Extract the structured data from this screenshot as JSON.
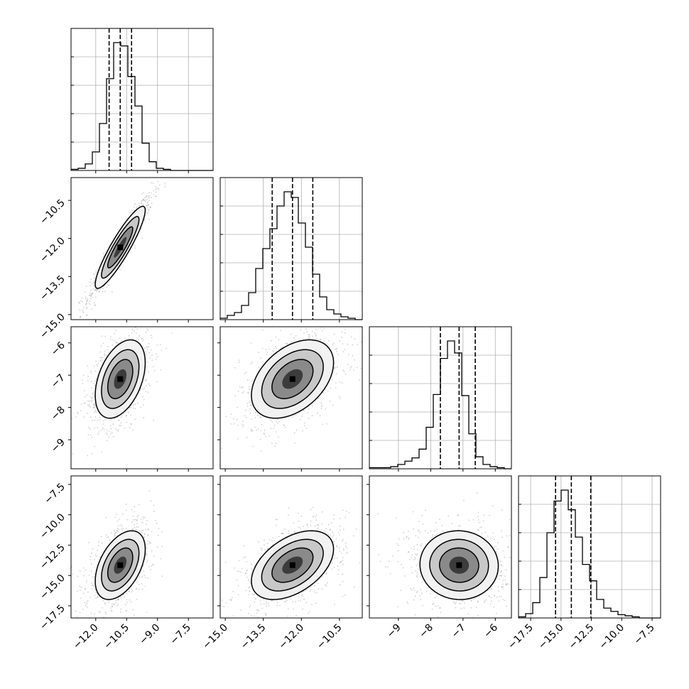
{
  "chart_data": {
    "type": "corner",
    "parameters": 4,
    "colors": {
      "line": "#000000",
      "grid": "#b0b0b0",
      "points": "#7f7f7f"
    },
    "grid": true,
    "axis_ranges": [
      [
        -13.2,
        -6.3
      ],
      [
        -15.2,
        -9.6
      ],
      [
        -9.9,
        -5.5
      ],
      [
        -18.5,
        -6.8
      ]
    ],
    "ticks": [
      {
        "values": [
          -12.0,
          -10.5,
          -9.0,
          -7.5
        ],
        "labels": [
          "−12.0",
          "−10.5",
          "−9.0",
          "−7.5"
        ]
      },
      {
        "values": [
          -15.0,
          -13.5,
          -12.0,
          -10.5
        ],
        "labels": [
          "−15.0",
          "−13.5",
          "−12.0",
          "−10.5"
        ]
      },
      {
        "values": [
          -9,
          -8,
          -7,
          -6
        ],
        "labels": [
          "−9",
          "−8",
          "−7",
          "−6"
        ]
      },
      {
        "values": [
          -17.5,
          -15.0,
          -12.5,
          -10.0,
          -7.5
        ],
        "labels": [
          "−17.5",
          "−15.0",
          "−12.5",
          "−10.0",
          "−7.5"
        ]
      }
    ],
    "histograms": [
      {
        "param": 0,
        "bin_start": -13.2,
        "bin_width": 0.345,
        "counts": [
          1,
          2,
          6,
          17,
          43,
          84,
          117,
          114,
          86,
          59,
          25,
          8,
          2,
          1,
          0,
          0,
          0,
          0,
          0,
          0
        ],
        "quantiles": [
          -11.35,
          -10.81,
          -10.26
        ]
      },
      {
        "param": 1,
        "bin_start": -15.2,
        "bin_width": 0.28,
        "counts": [
          1,
          3,
          5,
          10,
          19,
          36,
          50,
          64,
          80,
          90,
          86,
          68,
          51,
          32,
          16,
          7,
          4,
          2,
          1,
          0
        ],
        "quantiles": [
          -13.15,
          -12.35,
          -11.55
        ]
      },
      {
        "param": 2,
        "bin_start": -9.9,
        "bin_width": 0.22,
        "counts": [
          1,
          1,
          1,
          2,
          4,
          7,
          10,
          18,
          38,
          68,
          101,
          117,
          106,
          67,
          32,
          11,
          4,
          2,
          1,
          0
        ],
        "quantiles": [
          -7.7,
          -7.12,
          -6.62
        ]
      },
      {
        "param": 3,
        "bin_start": -18.5,
        "bin_width": 0.585,
        "counts": [
          1,
          4,
          14,
          37,
          78,
          107,
          117,
          99,
          74,
          49,
          34,
          17,
          9,
          6,
          3,
          2,
          1,
          0,
          0,
          0
        ],
        "quantiles": [
          -15.45,
          -14.15,
          -12.55
        ]
      }
    ],
    "scatter_pairs": [
      {
        "x_param": 0,
        "y_param": 1,
        "mean": [
          -10.81,
          -12.35
        ],
        "sd": [
          0.6,
          0.8
        ],
        "corr": 0.95
      },
      {
        "x_param": 0,
        "y_param": 2,
        "mean": [
          -10.81,
          -7.12
        ],
        "sd": [
          0.6,
          0.6
        ],
        "corr": 0.45
      },
      {
        "x_param": 1,
        "y_param": 2,
        "mean": [
          -12.35,
          -7.12
        ],
        "sd": [
          0.8,
          0.6
        ],
        "corr": 0.45
      },
      {
        "x_param": 0,
        "y_param": 3,
        "mean": [
          -10.81,
          -14.15
        ],
        "sd": [
          0.6,
          1.4
        ],
        "corr": 0.5
      },
      {
        "x_param": 1,
        "y_param": 3,
        "mean": [
          -12.35,
          -14.15
        ],
        "sd": [
          0.8,
          1.4
        ],
        "corr": 0.5
      },
      {
        "x_param": 2,
        "y_param": 3,
        "mean": [
          -7.12,
          -14.15
        ],
        "sd": [
          0.6,
          1.4
        ],
        "corr": -0.05
      }
    ],
    "contour_levels_sigma": [
      0.5,
      1.0,
      1.5,
      2.0
    ]
  }
}
